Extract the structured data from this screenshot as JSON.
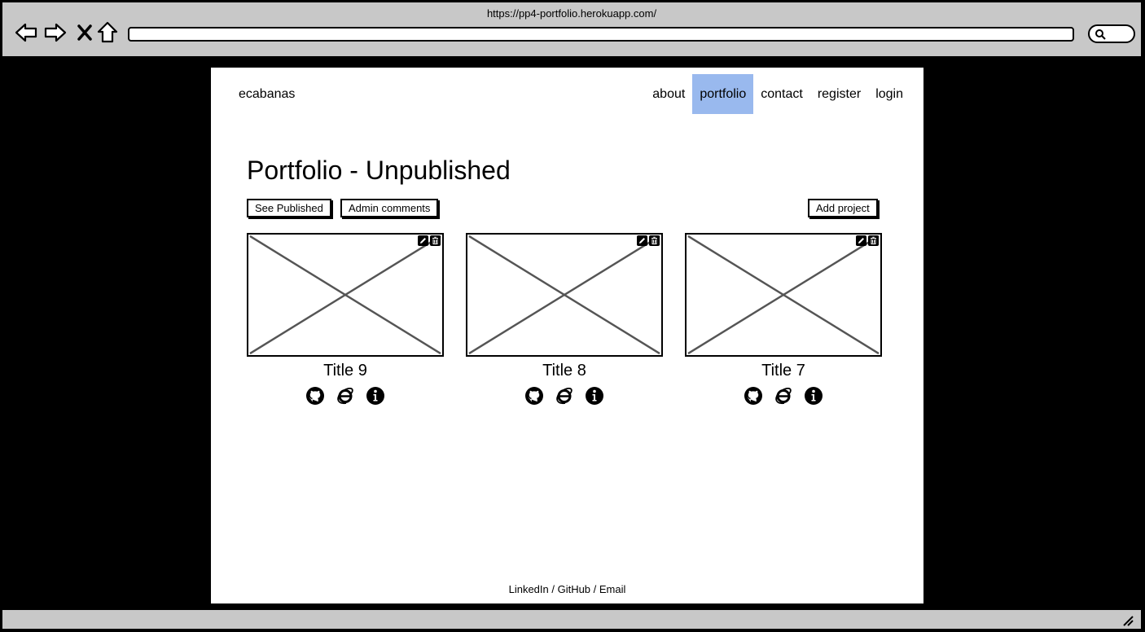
{
  "browser": {
    "url": "https://pp4-portfolio.herokuapp.com/"
  },
  "header": {
    "brand": "ecabanas",
    "nav": [
      {
        "label": "about",
        "active": false
      },
      {
        "label": "portfolio",
        "active": true
      },
      {
        "label": "contact",
        "active": false
      },
      {
        "label": "register",
        "active": false
      },
      {
        "label": "login",
        "active": false
      }
    ]
  },
  "main": {
    "title": "Portfolio - Unpublished",
    "buttons": {
      "see_published": "See Published",
      "admin_comments": "Admin comments",
      "add_project": "Add project"
    },
    "projects": [
      {
        "title": "Title 9"
      },
      {
        "title": "Title 8"
      },
      {
        "title": "Title 7"
      }
    ]
  },
  "footer": {
    "text": "LinkedIn / GitHub / Email"
  },
  "colors": {
    "active_nav": "#99b9ee",
    "chrome": "#c8c8c8"
  },
  "icons": [
    "back-arrow-icon",
    "forward-arrow-icon",
    "close-icon",
    "home-icon",
    "search-icon",
    "edit-icon",
    "trash-icon",
    "github-icon",
    "internet-explorer-icon",
    "info-icon",
    "resize-handle-icon"
  ]
}
